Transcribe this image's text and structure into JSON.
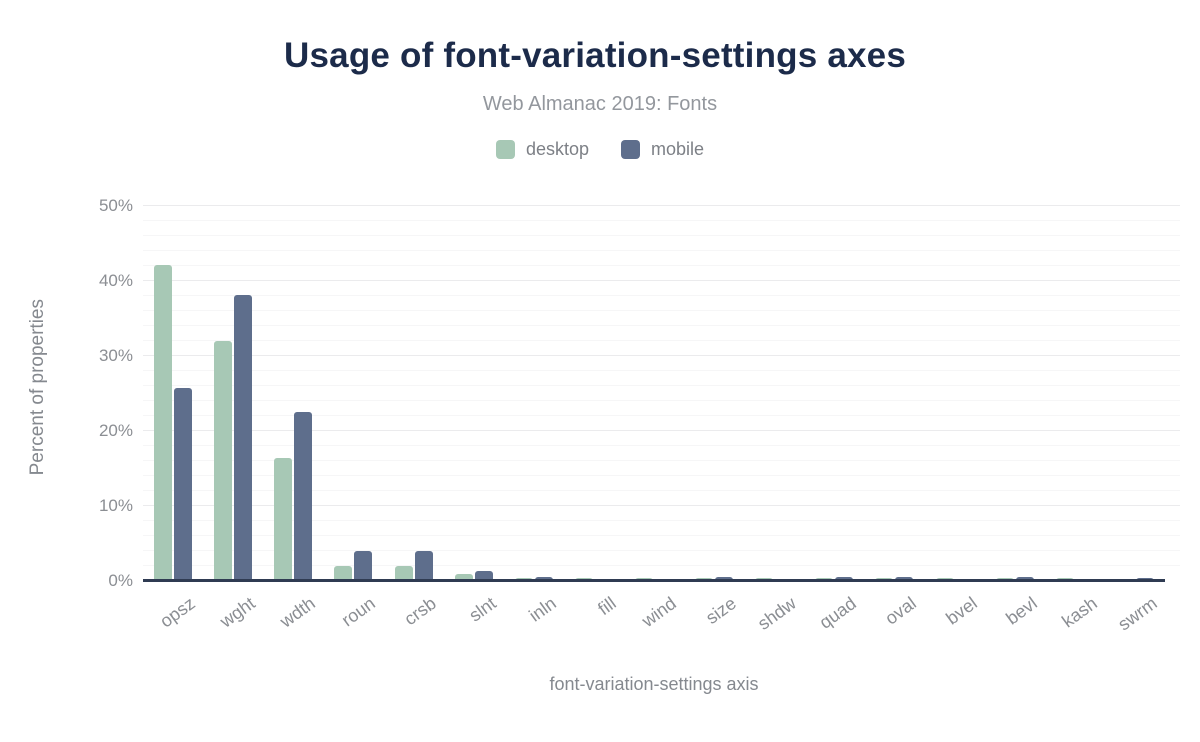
{
  "chart_data": {
    "type": "bar",
    "title": "Usage of font-variation-settings axes",
    "subtitle": "Web Almanac 2019: Fonts",
    "xlabel": "font-variation-settings axis",
    "ylabel": "Percent of properties",
    "categories": [
      "opsz",
      "wght",
      "wdth",
      "roun",
      "crsb",
      "slnt",
      "inln",
      "fill",
      "wind",
      "size",
      "shdw",
      "quad",
      "oval",
      "bvel",
      "bevl",
      "kash",
      "swrm"
    ],
    "series": [
      {
        "name": "desktop",
        "color": "#a7c8b5",
        "values": [
          42.2,
          32.0,
          16.4,
          2.0,
          2.0,
          1.0,
          0.4,
          0.4,
          0.4,
          0.4,
          0.4,
          0.4,
          0.4,
          0.4,
          0.4,
          0.4,
          0.15
        ]
      },
      {
        "name": "mobile",
        "color": "#5e6e8c",
        "values": [
          25.7,
          38.2,
          22.6,
          4.0,
          4.0,
          1.4,
          0.6,
          0.05,
          0.1,
          0.6,
          0.1,
          0.6,
          0.6,
          0.05,
          0.6,
          0.05,
          0.45
        ]
      }
    ],
    "ylim": [
      0,
      50
    ],
    "ytick_labels": [
      "0%",
      "10%",
      "20%",
      "30%",
      "40%",
      "50%"
    ],
    "ytick_values": [
      0,
      10,
      20,
      30,
      40,
      50
    ],
    "minor_grid_step": 2,
    "grid": "horizontal",
    "legend_position": "top-center",
    "colors": {
      "title": "#1c2b4a",
      "subtitle": "#93979d",
      "axis_text": "#8b8e93",
      "axis_line": "#2f3b52",
      "grid_major": "#ebebed",
      "grid_minor": "#f6f6f7",
      "background": "#ffffff"
    }
  }
}
